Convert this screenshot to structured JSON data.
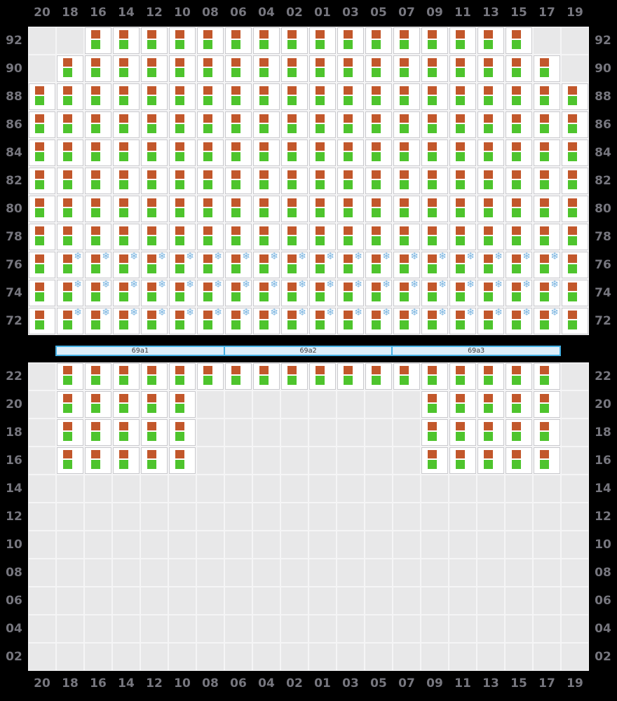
{
  "columns": [
    "20",
    "18",
    "16",
    "14",
    "12",
    "10",
    "08",
    "06",
    "04",
    "02",
    "01",
    "03",
    "05",
    "07",
    "09",
    "11",
    "13",
    "15",
    "17",
    "19"
  ],
  "cell_codes": {
    "0": "empty",
    "1": "cabin",
    "2": "cabin-with-snowflake"
  },
  "upper_deck": {
    "rows": [
      {
        "label": "92",
        "cells": [
          0,
          0,
          1,
          1,
          1,
          1,
          1,
          1,
          1,
          1,
          1,
          1,
          1,
          1,
          1,
          1,
          1,
          1,
          0,
          0
        ]
      },
      {
        "label": "90",
        "cells": [
          0,
          1,
          1,
          1,
          1,
          1,
          1,
          1,
          1,
          1,
          1,
          1,
          1,
          1,
          1,
          1,
          1,
          1,
          1,
          0
        ]
      },
      {
        "label": "88",
        "cells": [
          1,
          1,
          1,
          1,
          1,
          1,
          1,
          1,
          1,
          1,
          1,
          1,
          1,
          1,
          1,
          1,
          1,
          1,
          1,
          1
        ]
      },
      {
        "label": "86",
        "cells": [
          1,
          1,
          1,
          1,
          1,
          1,
          1,
          1,
          1,
          1,
          1,
          1,
          1,
          1,
          1,
          1,
          1,
          1,
          1,
          1
        ]
      },
      {
        "label": "84",
        "cells": [
          1,
          1,
          1,
          1,
          1,
          1,
          1,
          1,
          1,
          1,
          1,
          1,
          1,
          1,
          1,
          1,
          1,
          1,
          1,
          1
        ]
      },
      {
        "label": "82",
        "cells": [
          1,
          1,
          1,
          1,
          1,
          1,
          1,
          1,
          1,
          1,
          1,
          1,
          1,
          1,
          1,
          1,
          1,
          1,
          1,
          1
        ]
      },
      {
        "label": "80",
        "cells": [
          1,
          1,
          1,
          1,
          1,
          1,
          1,
          1,
          1,
          1,
          1,
          1,
          1,
          1,
          1,
          1,
          1,
          1,
          1,
          1
        ]
      },
      {
        "label": "78",
        "cells": [
          1,
          1,
          1,
          1,
          1,
          1,
          1,
          1,
          1,
          1,
          1,
          1,
          1,
          1,
          1,
          1,
          1,
          1,
          1,
          1
        ]
      },
      {
        "label": "76",
        "cells": [
          1,
          2,
          2,
          2,
          2,
          2,
          2,
          2,
          2,
          2,
          2,
          2,
          2,
          2,
          2,
          2,
          2,
          2,
          2,
          1
        ]
      },
      {
        "label": "74",
        "cells": [
          1,
          2,
          2,
          2,
          2,
          2,
          2,
          2,
          2,
          2,
          2,
          2,
          2,
          2,
          2,
          2,
          2,
          2,
          2,
          1
        ]
      },
      {
        "label": "72",
        "cells": [
          1,
          2,
          2,
          2,
          2,
          2,
          2,
          2,
          2,
          2,
          2,
          2,
          2,
          2,
          2,
          2,
          2,
          2,
          2,
          1
        ]
      }
    ]
  },
  "section_bar": {
    "segments": [
      "69a1",
      "69a2",
      "69a3"
    ]
  },
  "lower_deck": {
    "rows": [
      {
        "label": "22",
        "cells": [
          0,
          1,
          1,
          1,
          1,
          1,
          1,
          1,
          1,
          1,
          1,
          1,
          1,
          1,
          1,
          1,
          1,
          1,
          1,
          0
        ]
      },
      {
        "label": "20",
        "cells": [
          0,
          1,
          1,
          1,
          1,
          1,
          0,
          0,
          0,
          0,
          0,
          0,
          0,
          0,
          1,
          1,
          1,
          1,
          1,
          0
        ]
      },
      {
        "label": "18",
        "cells": [
          0,
          1,
          1,
          1,
          1,
          1,
          0,
          0,
          0,
          0,
          0,
          0,
          0,
          0,
          1,
          1,
          1,
          1,
          1,
          0
        ]
      },
      {
        "label": "16",
        "cells": [
          0,
          1,
          1,
          1,
          1,
          1,
          0,
          0,
          0,
          0,
          0,
          0,
          0,
          0,
          1,
          1,
          1,
          1,
          1,
          0
        ]
      },
      {
        "label": "14",
        "cells": [
          0,
          0,
          0,
          0,
          0,
          0,
          0,
          0,
          0,
          0,
          0,
          0,
          0,
          0,
          0,
          0,
          0,
          0,
          0,
          0
        ]
      },
      {
        "label": "12",
        "cells": [
          0,
          0,
          0,
          0,
          0,
          0,
          0,
          0,
          0,
          0,
          0,
          0,
          0,
          0,
          0,
          0,
          0,
          0,
          0,
          0
        ]
      },
      {
        "label": "10",
        "cells": [
          0,
          0,
          0,
          0,
          0,
          0,
          0,
          0,
          0,
          0,
          0,
          0,
          0,
          0,
          0,
          0,
          0,
          0,
          0,
          0
        ]
      },
      {
        "label": "08",
        "cells": [
          0,
          0,
          0,
          0,
          0,
          0,
          0,
          0,
          0,
          0,
          0,
          0,
          0,
          0,
          0,
          0,
          0,
          0,
          0,
          0
        ]
      },
      {
        "label": "06",
        "cells": [
          0,
          0,
          0,
          0,
          0,
          0,
          0,
          0,
          0,
          0,
          0,
          0,
          0,
          0,
          0,
          0,
          0,
          0,
          0,
          0
        ]
      },
      {
        "label": "04",
        "cells": [
          0,
          0,
          0,
          0,
          0,
          0,
          0,
          0,
          0,
          0,
          0,
          0,
          0,
          0,
          0,
          0,
          0,
          0,
          0,
          0
        ]
      },
      {
        "label": "02",
        "cells": [
          0,
          0,
          0,
          0,
          0,
          0,
          0,
          0,
          0,
          0,
          0,
          0,
          0,
          0,
          0,
          0,
          0,
          0,
          0,
          0
        ]
      }
    ]
  },
  "icons": {
    "snowflake_glyph": "❄"
  },
  "colors": {
    "background": "#000000",
    "label_text": "#76767e",
    "grid_background": "#f5f5f6",
    "empty_cell": "#e8e8e9",
    "cabin_cell": "#ffffff",
    "cabin_cell_border": "#c9c9cd",
    "indicator_top": "#c2572b",
    "indicator_bottom": "#4ec42d",
    "snowflake": "#7ab4e0",
    "bar_fill": "#ddeef9",
    "bar_border": "#44afe3",
    "bar_text": "#3c3c3c"
  }
}
